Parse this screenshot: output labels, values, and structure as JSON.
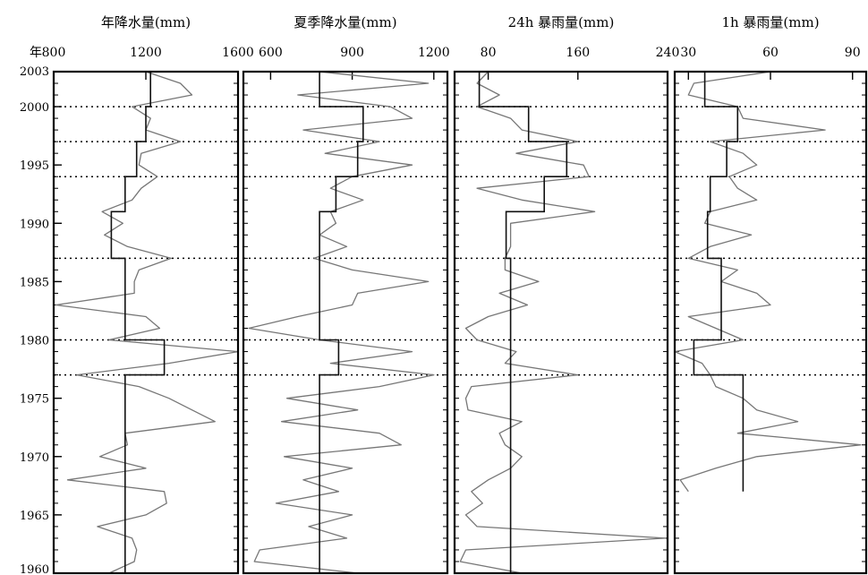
{
  "y_axis_label": "年",
  "chart_data": [
    {
      "type": "line",
      "title": "年降水量(mm)",
      "xlim": [
        800,
        1600
      ],
      "xticks": [
        800,
        1200,
        1600
      ],
      "ylim": [
        1960,
        2003
      ],
      "yticks": [
        1960,
        1965,
        1970,
        1975,
        1980,
        1985,
        1990,
        1995,
        2000,
        2003
      ],
      "change_years": [
        1977,
        1980,
        1987,
        1994,
        1997,
        2000
      ],
      "series": [
        {
          "years": [
            1960,
            1961,
            1962,
            1963,
            1964,
            1965,
            1966,
            1967,
            1968,
            1969,
            1970,
            1971,
            1972,
            1973,
            1974,
            1975,
            1976,
            1977,
            1978,
            1979,
            1980,
            1981,
            1982,
            1983,
            1984,
            1985,
            1986,
            1987,
            1988,
            1989,
            1990,
            1991,
            1992,
            1993,
            1994,
            1995,
            1996,
            1997,
            1998,
            1999,
            2000,
            2001,
            2002,
            2003
          ],
          "values": [
            1040,
            1150,
            1160,
            1140,
            990,
            1200,
            1290,
            1280,
            860,
            1200,
            1000,
            1120,
            1110,
            1500,
            1400,
            1300,
            1170,
            900,
            1300,
            1600,
            1040,
            1260,
            1200,
            810,
            1150,
            1150,
            1170,
            1310,
            1120,
            1020,
            1100,
            1010,
            1140,
            1180,
            1250,
            1170,
            1180,
            1350,
            1200,
            1220,
            1140,
            1400,
            1350,
            1200
          ]
        }
      ],
      "means": [
        {
          "from": 1960,
          "to": 1977,
          "value": 1110
        },
        {
          "from": 1977,
          "to": 1980,
          "value": 1280
        },
        {
          "from": 1980,
          "to": 1987,
          "value": 1110
        },
        {
          "from": 1987,
          "to": 1991,
          "value": 1050
        },
        {
          "from": 1991,
          "to": 1994,
          "value": 1110
        },
        {
          "from": 1994,
          "to": 1997,
          "value": 1160
        },
        {
          "from": 1997,
          "to": 2000,
          "value": 1200
        },
        {
          "from": 2000,
          "to": 2003,
          "value": 1220
        }
      ]
    },
    {
      "type": "line",
      "title": "夏季降水量(mm)",
      "xlim": [
        500,
        1250
      ],
      "xticks": [
        600,
        900,
        1200
      ],
      "ylim": [
        1960,
        2003
      ],
      "yticks": [
        1960,
        1965,
        1970,
        1975,
        1980,
        1985,
        1990,
        1995,
        2000,
        2003
      ],
      "change_years": [
        1977,
        1980,
        1987,
        1994,
        1997,
        2000
      ],
      "series": [
        {
          "years": [
            1960,
            1961,
            1962,
            1963,
            1964,
            1965,
            1966,
            1967,
            1968,
            1969,
            1970,
            1971,
            1972,
            1973,
            1974,
            1975,
            1976,
            1977,
            1978,
            1979,
            1980,
            1981,
            1982,
            1983,
            1984,
            1985,
            1986,
            1987,
            1988,
            1989,
            1990,
            1991,
            1992,
            1993,
            1994,
            1995,
            1996,
            1997,
            1998,
            1999,
            2000,
            2001,
            2002,
            2003
          ],
          "values": [
            920,
            540,
            560,
            880,
            740,
            900,
            620,
            850,
            720,
            900,
            650,
            1080,
            1000,
            640,
            920,
            660,
            1000,
            1200,
            820,
            1120,
            780,
            520,
            700,
            900,
            920,
            1180,
            900,
            760,
            880,
            780,
            840,
            820,
            940,
            820,
            900,
            1120,
            800,
            1000,
            720,
            1120,
            1040,
            700,
            1180,
            780
          ]
        }
      ],
      "means": [
        {
          "from": 1960,
          "to": 1977,
          "value": 780
        },
        {
          "from": 1977,
          "to": 1980,
          "value": 850
        },
        {
          "from": 1980,
          "to": 1987,
          "value": 780
        },
        {
          "from": 1987,
          "to": 1991,
          "value": 780
        },
        {
          "from": 1991,
          "to": 1994,
          "value": 840
        },
        {
          "from": 1994,
          "to": 1997,
          "value": 920
        },
        {
          "from": 1997,
          "to": 2000,
          "value": 940
        },
        {
          "from": 2000,
          "to": 2003,
          "value": 780
        }
      ]
    },
    {
      "type": "line",
      "title": "24h 暴雨量(mm)",
      "xlim": [
        50,
        240
      ],
      "xticks": [
        80,
        160,
        240
      ],
      "ylim": [
        1960,
        2003
      ],
      "yticks": [
        1960,
        1965,
        1970,
        1975,
        1980,
        1985,
        1990,
        1995,
        2000,
        2003
      ],
      "change_years": [
        1977,
        1980,
        1987,
        1994,
        1997,
        2000
      ],
      "series": [
        {
          "years": [
            1960,
            1961,
            1962,
            1963,
            1964,
            1965,
            1966,
            1967,
            1968,
            1969,
            1970,
            1971,
            1972,
            1973,
            1974,
            1975,
            1976,
            1977,
            1978,
            1979,
            1980,
            1981,
            1982,
            1983,
            1984,
            1985,
            1986,
            1987,
            1988,
            1989,
            1990,
            1991,
            1992,
            1993,
            1994,
            1995,
            1996,
            1997,
            1998,
            1999,
            2000,
            2001,
            2002,
            2003
          ],
          "values": [
            110,
            55,
            60,
            238,
            70,
            60,
            75,
            65,
            80,
            100,
            110,
            95,
            90,
            110,
            62,
            60,
            65,
            160,
            95,
            105,
            70,
            60,
            80,
            115,
            90,
            125,
            95,
            95,
            100,
            100,
            100,
            175,
            110,
            70,
            170,
            165,
            105,
            160,
            110,
            100,
            70,
            90,
            70,
            80
          ]
        }
      ],
      "means": [
        {
          "from": 1960,
          "to": 1977,
          "value": 100
        },
        {
          "from": 1977,
          "to": 1980,
          "value": 100
        },
        {
          "from": 1980,
          "to": 1987,
          "value": 100
        },
        {
          "from": 1987,
          "to": 1991,
          "value": 96
        },
        {
          "from": 1991,
          "to": 1994,
          "value": 130
        },
        {
          "from": 1994,
          "to": 1997,
          "value": 150
        },
        {
          "from": 1997,
          "to": 2000,
          "value": 116
        },
        {
          "from": 2000,
          "to": 2003,
          "value": 72
        }
      ]
    },
    {
      "type": "line",
      "title": "1h 暴雨量(mm)",
      "xlim": [
        25,
        95
      ],
      "xticks": [
        30,
        60,
        90
      ],
      "ylim": [
        1960,
        2003
      ],
      "yticks": [
        1960,
        1965,
        1970,
        1975,
        1980,
        1985,
        1990,
        1995,
        2000,
        2003
      ],
      "change_years": [
        1977,
        1980,
        1987,
        1994,
        1997,
        2000
      ],
      "series": [
        {
          "years": [
            1967,
            1968,
            1969,
            1970,
            1971,
            1972,
            1973,
            1974,
            1975,
            1976,
            1977,
            1978,
            1979,
            1980,
            1981,
            1982,
            1983,
            1984,
            1985,
            1986,
            1987,
            1988,
            1989,
            1990,
            1991,
            1992,
            1993,
            1994,
            1995,
            1996,
            1997,
            1998,
            1999,
            2000,
            2001,
            2002,
            2003
          ],
          "values": [
            30,
            27,
            40,
            55,
            93,
            48,
            70,
            55,
            50,
            40,
            38,
            35,
            25,
            50,
            40,
            30,
            60,
            55,
            42,
            48,
            30,
            38,
            53,
            36,
            38,
            55,
            48,
            45,
            55,
            50,
            38,
            80,
            50,
            48,
            30,
            32,
            60
          ]
        }
      ],
      "means": [
        {
          "from": 1967,
          "to": 1977,
          "value": 50
        },
        {
          "from": 1977,
          "to": 1980,
          "value": 32
        },
        {
          "from": 1980,
          "to": 1987,
          "value": 42
        },
        {
          "from": 1987,
          "to": 1991,
          "value": 37
        },
        {
          "from": 1991,
          "to": 1994,
          "value": 38
        },
        {
          "from": 1994,
          "to": 1997,
          "value": 44
        },
        {
          "from": 1997,
          "to": 2000,
          "value": 48
        },
        {
          "from": 2000,
          "to": 2003,
          "value": 36
        }
      ]
    }
  ]
}
